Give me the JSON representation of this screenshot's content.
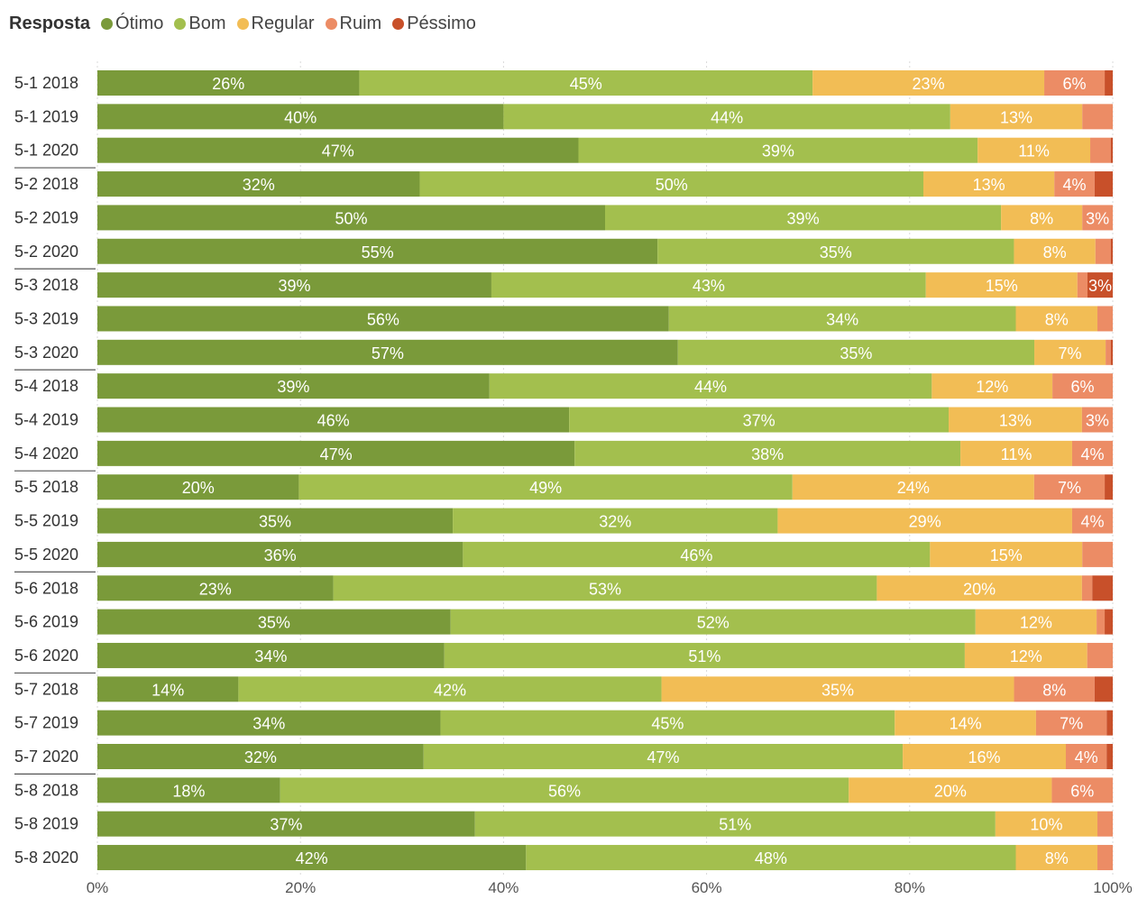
{
  "chart_data": {
    "type": "bar",
    "orientation": "horizontal",
    "stacked": "percent",
    "legend_title": "Resposta",
    "legend_position": "top-left",
    "categories": [
      "5-1 2018",
      "5-1 2019",
      "5-1 2020",
      "5-2 2018",
      "5-2 2019",
      "5-2 2020",
      "5-3 2018",
      "5-3 2019",
      "5-3 2020",
      "5-4 2018",
      "5-4 2019",
      "5-4 2020",
      "5-5 2018",
      "5-5 2019",
      "5-5 2020",
      "5-6 2018",
      "5-6 2019",
      "5-6 2020",
      "5-7 2018",
      "5-7 2019",
      "5-7 2020",
      "5-8 2018",
      "5-8 2019",
      "5-8 2020"
    ],
    "series": [
      {
        "name": "Ótimo",
        "color": "#7a9a3a",
        "values": [
          26,
          40,
          47,
          32,
          50,
          55,
          39,
          56,
          57,
          39,
          46,
          47,
          20,
          35,
          36,
          23,
          35,
          34,
          14,
          34,
          32,
          18,
          37,
          42
        ],
        "labels": [
          "26%",
          "40%",
          "47%",
          "32%",
          "50%",
          "55%",
          "39%",
          "56%",
          "57%",
          "39%",
          "46%",
          "47%",
          "20%",
          "35%",
          "36%",
          "23%",
          "35%",
          "34%",
          "14%",
          "34%",
          "32%",
          "18%",
          "37%",
          "42%"
        ]
      },
      {
        "name": "Bom",
        "color": "#a3bf4e",
        "values": [
          45,
          44,
          39,
          50,
          39,
          35,
          43,
          34,
          35,
          44,
          37,
          38,
          49,
          32,
          46,
          53,
          52,
          51,
          42,
          45,
          47,
          56,
          51,
          48
        ],
        "labels": [
          "45%",
          "44%",
          "39%",
          "50%",
          "39%",
          "35%",
          "43%",
          "34%",
          "35%",
          "44%",
          "37%",
          "38%",
          "49%",
          "32%",
          "46%",
          "53%",
          "52%",
          "51%",
          "42%",
          "45%",
          "47%",
          "56%",
          "51%",
          "48%"
        ]
      },
      {
        "name": "Regular",
        "color": "#f2bd55",
        "values": [
          23,
          13,
          11,
          13,
          8,
          8,
          15,
          8,
          7,
          12,
          13,
          11,
          24,
          29,
          15,
          20,
          12,
          12,
          35,
          14,
          16,
          20,
          10,
          8
        ],
        "labels": [
          "23%",
          "13%",
          "11%",
          "13%",
          "8%",
          "8%",
          "15%",
          "8%",
          "7%",
          "12%",
          "13%",
          "11%",
          "24%",
          "29%",
          "15%",
          "20%",
          "12%",
          "12%",
          "35%",
          "14%",
          "16%",
          "20%",
          "10%",
          "8%"
        ]
      },
      {
        "name": "Ruim",
        "color": "#ec8c65",
        "values": [
          6,
          3,
          2,
          4,
          3,
          1.5,
          1,
          1.5,
          0.5,
          6,
          3,
          4,
          7,
          4,
          3,
          1,
          0.8,
          2.5,
          8,
          7,
          4,
          6,
          1.5,
          1.5
        ],
        "labels": [
          "6%",
          "",
          "",
          "4%",
          "3%",
          "",
          "",
          "",
          "",
          "6%",
          "3%",
          "4%",
          "7%",
          "4%",
          "",
          "",
          "",
          "",
          "8%",
          "7%",
          "4%",
          "6%",
          "",
          ""
        ]
      },
      {
        "name": "Péssimo",
        "color": "#c8502a",
        "values": [
          0.8,
          0,
          0.2,
          1.8,
          0,
          0.2,
          2.5,
          0,
          0.2,
          0,
          0,
          0,
          0.8,
          0,
          0,
          2,
          0.8,
          0,
          1.8,
          0.6,
          0.6,
          0,
          0,
          0
        ],
        "labels": [
          "",
          "",
          "",
          "",
          "",
          "",
          "3%",
          "",
          "",
          "",
          "",
          "",
          "",
          "",
          "",
          "",
          "",
          "",
          "",
          "",
          "",
          "",
          "",
          ""
        ]
      }
    ],
    "xlim": [
      0,
      100
    ],
    "xticks": [
      "0%",
      "20%",
      "40%",
      "60%",
      "80%",
      "100%"
    ],
    "grid": true
  }
}
